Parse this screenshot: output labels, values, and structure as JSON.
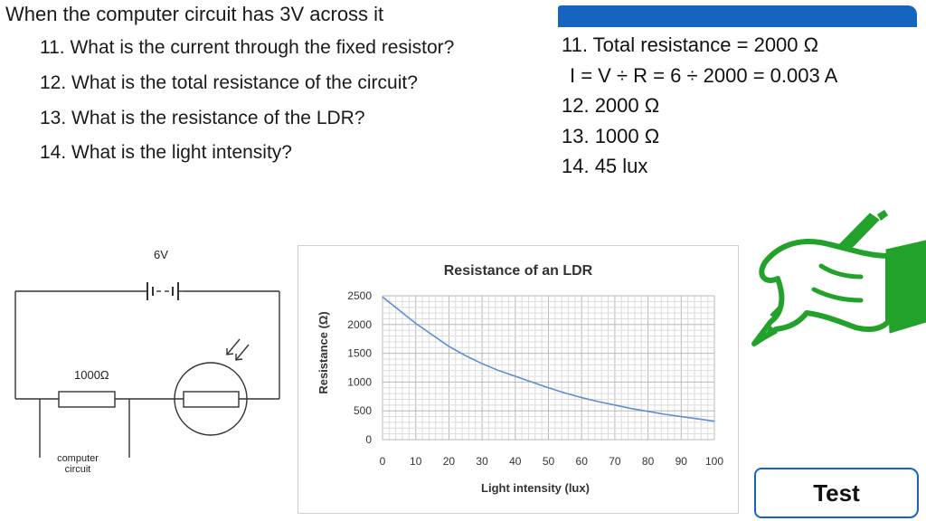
{
  "header": {
    "title": "When the computer circuit has 3V across it",
    "questions": [
      "11. What is the current through the fixed resistor?",
      "12. What is the total resistance of the circuit?",
      "13. What is the resistance of the LDR?",
      "14. What is the light intensity?"
    ]
  },
  "answers": [
    "11. Total resistance = 2000 Ω",
    "I = V ÷ R = 6 ÷ 2000 = 0.003 A",
    "12. 2000 Ω",
    "13. 1000 Ω",
    "14. 45 lux"
  ],
  "circuit": {
    "battery_label": "6V",
    "resistor_label": "1000Ω",
    "computer_label_line1": "computer",
    "computer_label_line2": "circuit"
  },
  "chart_data": {
    "type": "line",
    "title": "Resistance of an LDR",
    "xlabel": "Light intensity (lux)",
    "ylabel": "Resistance (Ω)",
    "xlim": [
      0,
      100
    ],
    "ylim": [
      0,
      2500
    ],
    "x_ticks": [
      0,
      10,
      20,
      30,
      40,
      50,
      60,
      70,
      80,
      90,
      100
    ],
    "y_ticks": [
      0,
      500,
      1000,
      1500,
      2000,
      2500
    ],
    "grid": true,
    "series": [
      {
        "name": "Resistance",
        "color": "#5b8fd1",
        "x": [
          0,
          5,
          10,
          15,
          20,
          25,
          30,
          35,
          40,
          45,
          50,
          55,
          60,
          65,
          70,
          75,
          80,
          85,
          90,
          95,
          100
        ],
        "y": [
          2480,
          2250,
          2020,
          1820,
          1620,
          1460,
          1320,
          1200,
          1100,
          1000,
          900,
          810,
          730,
          660,
          600,
          540,
          490,
          440,
          400,
          360,
          320
        ]
      }
    ]
  },
  "badge": {
    "label": "Test"
  },
  "colors": {
    "accent": "#1565c0",
    "icon_green": "#22a22a"
  }
}
